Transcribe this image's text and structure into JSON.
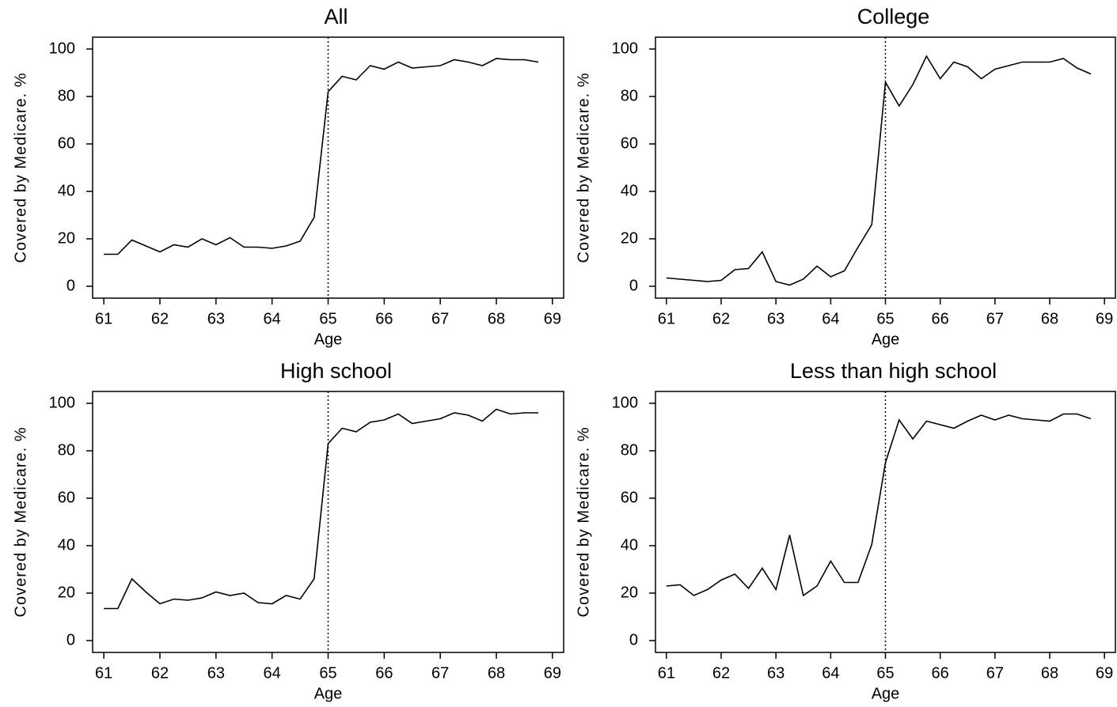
{
  "chart_data": [
    {
      "type": "line",
      "title": "All",
      "x_label": "Age",
      "y_label": "Covered by Medicare. %",
      "x": [
        61,
        61.25,
        61.5,
        61.75,
        62,
        62.25,
        62.5,
        62.75,
        63,
        63.25,
        63.5,
        63.75,
        64,
        64.25,
        64.5,
        64.75,
        65,
        65.25,
        65.5,
        65.75,
        66,
        66.25,
        66.5,
        66.75,
        67,
        67.25,
        67.5,
        67.75,
        68,
        68.25,
        68.5,
        68.75
      ],
      "values": [
        13.5,
        13.5,
        19.5,
        17,
        14.5,
        17.5,
        16.5,
        20,
        17.5,
        20.5,
        16.5,
        16.5,
        16,
        17,
        19,
        29,
        82,
        88.5,
        87,
        93,
        91.5,
        94.5,
        92,
        92.5,
        93,
        95.5,
        94.5,
        93,
        96,
        95.5,
        95.5,
        94.5
      ],
      "color": "#000000",
      "vline": 65,
      "xlim": [
        60.8,
        69.2
      ],
      "ylim": [
        -5,
        105
      ],
      "xticks": [
        61,
        62,
        63,
        64,
        65,
        66,
        67,
        68,
        69
      ],
      "yticks": [
        0,
        20,
        40,
        60,
        80,
        100
      ]
    },
    {
      "type": "line",
      "title": "College",
      "x_label": "Age",
      "y_label": "Covered by Medicare. %",
      "x": [
        61,
        61.25,
        61.5,
        61.75,
        62,
        62.25,
        62.5,
        62.75,
        63,
        63.25,
        63.5,
        63.75,
        64,
        64.25,
        64.5,
        64.75,
        65,
        65.25,
        65.5,
        65.75,
        66,
        66.25,
        66.5,
        66.75,
        67,
        67.25,
        67.5,
        67.75,
        68,
        68.25,
        68.5,
        68.75
      ],
      "values": [
        3.5,
        3,
        2.5,
        2,
        2.5,
        7,
        7.5,
        14.5,
        2,
        0.5,
        3,
        8.5,
        4,
        6.5,
        16.5,
        26,
        86,
        76,
        85,
        97,
        87.5,
        94.5,
        92.5,
        87.5,
        91.5,
        93,
        94.5,
        94.5,
        94.5,
        96,
        92,
        89.5
      ],
      "color": "#000000",
      "vline": 65,
      "xlim": [
        60.8,
        69.2
      ],
      "ylim": [
        -5,
        105
      ],
      "xticks": [
        61,
        62,
        63,
        64,
        65,
        66,
        67,
        68,
        69
      ],
      "yticks": [
        0,
        20,
        40,
        60,
        80,
        100
      ]
    },
    {
      "type": "line",
      "title": "High school",
      "x_label": "Age",
      "y_label": "Covered by Medicare. %",
      "x": [
        61,
        61.25,
        61.5,
        61.75,
        62,
        62.25,
        62.5,
        62.75,
        63,
        63.25,
        63.5,
        63.75,
        64,
        64.25,
        64.5,
        64.75,
        65,
        65.25,
        65.5,
        65.75,
        66,
        66.25,
        66.5,
        66.75,
        67,
        67.25,
        67.5,
        67.75,
        68,
        68.25,
        68.5,
        68.75
      ],
      "values": [
        13.5,
        13.5,
        26,
        20.5,
        15.5,
        17.5,
        17,
        18,
        20.5,
        19,
        20,
        16,
        15.5,
        19,
        17.5,
        26,
        83,
        89.5,
        88,
        92,
        93,
        95.5,
        91.5,
        92.5,
        93.5,
        96,
        95,
        92.5,
        97.5,
        95.5,
        96,
        96
      ],
      "color": "#000000",
      "vline": 65,
      "xlim": [
        60.8,
        69.2
      ],
      "ylim": [
        -5,
        105
      ],
      "xticks": [
        61,
        62,
        63,
        64,
        65,
        66,
        67,
        68,
        69
      ],
      "yticks": [
        0,
        20,
        40,
        60,
        80,
        100
      ]
    },
    {
      "type": "line",
      "title": "Less than high school",
      "x_label": "Age",
      "y_label": "Covered by Medicare. %",
      "x": [
        61,
        61.25,
        61.5,
        61.75,
        62,
        62.25,
        62.5,
        62.75,
        63,
        63.25,
        63.5,
        63.75,
        64,
        64.25,
        64.5,
        64.75,
        65,
        65.25,
        65.5,
        65.75,
        66,
        66.25,
        66.5,
        66.75,
        67,
        67.25,
        67.5,
        67.75,
        68,
        68.25,
        68.5,
        68.75
      ],
      "values": [
        23,
        23.5,
        19,
        21.5,
        25.5,
        28,
        22,
        30.5,
        21.5,
        44.5,
        19,
        23,
        33.5,
        24.5,
        24.5,
        40.5,
        75,
        93,
        85,
        92.5,
        91,
        89.5,
        92.5,
        95,
        93,
        95,
        93.5,
        93,
        92.5,
        95.5,
        95.5,
        93.5
      ],
      "color": "#000000",
      "vline": 65,
      "xlim": [
        60.8,
        69.2
      ],
      "ylim": [
        -5,
        105
      ],
      "xticks": [
        61,
        62,
        63,
        64,
        65,
        66,
        67,
        68,
        69
      ],
      "yticks": [
        0,
        20,
        40,
        60,
        80,
        100
      ]
    }
  ]
}
